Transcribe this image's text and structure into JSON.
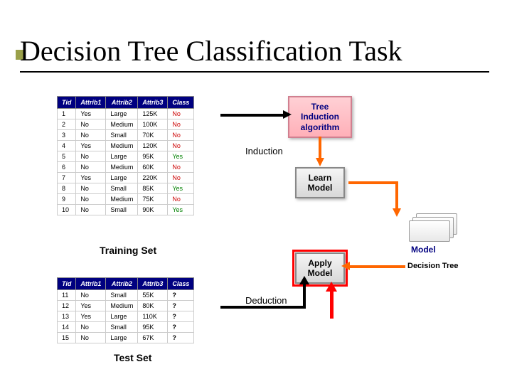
{
  "title": "Decision Tree Classification Task",
  "colors": {
    "header_bg": "#000080",
    "header_fg": "#ffffff",
    "no_color": "#cc0000",
    "yes_color": "#008000",
    "arrow_orange": "#ff6600",
    "highlight_red": "#ff0000",
    "bullet": "#9aa04a"
  },
  "training": {
    "label": "Training Set",
    "columns": [
      "Tid",
      "Attrib1",
      "Attrib2",
      "Attrib3",
      "Class"
    ],
    "rows": [
      [
        "1",
        "Yes",
        "Large",
        "125K",
        "No"
      ],
      [
        "2",
        "No",
        "Medium",
        "100K",
        "No"
      ],
      [
        "3",
        "No",
        "Small",
        "70K",
        "No"
      ],
      [
        "4",
        "Yes",
        "Medium",
        "120K",
        "No"
      ],
      [
        "5",
        "No",
        "Large",
        "95K",
        "Yes"
      ],
      [
        "6",
        "No",
        "Medium",
        "60K",
        "No"
      ],
      [
        "7",
        "Yes",
        "Large",
        "220K",
        "No"
      ],
      [
        "8",
        "No",
        "Small",
        "85K",
        "Yes"
      ],
      [
        "9",
        "No",
        "Medium",
        "75K",
        "No"
      ],
      [
        "10",
        "No",
        "Small",
        "90K",
        "Yes"
      ]
    ]
  },
  "test": {
    "label": "Test Set",
    "columns": [
      "Tid",
      "Attrib1",
      "Attrib2",
      "Attrib3",
      "Class"
    ],
    "rows": [
      [
        "11",
        "No",
        "Small",
        "55K",
        "?"
      ],
      [
        "12",
        "Yes",
        "Medium",
        "80K",
        "?"
      ],
      [
        "13",
        "Yes",
        "Large",
        "110K",
        "?"
      ],
      [
        "14",
        "No",
        "Small",
        "95K",
        "?"
      ],
      [
        "15",
        "No",
        "Large",
        "67K",
        "?"
      ]
    ]
  },
  "boxes": {
    "induction_algo": "Tree\nInduction\nalgorithm",
    "learn_model": "Learn\nModel",
    "apply_model": "Apply\nModel",
    "model": "Model"
  },
  "labels": {
    "induction": "Induction",
    "deduction": "Deduction",
    "decision_tree": "Decision Tree"
  }
}
